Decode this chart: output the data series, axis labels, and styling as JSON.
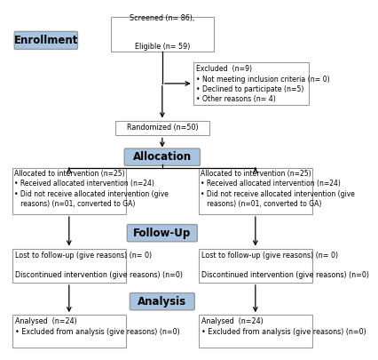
{
  "bg_color": "#ffffff",
  "box_border_color": "#999999",
  "label_box_color": "#a8c4e0",
  "label_text_color": "#000000",
  "box_text_color": "#000000",
  "enrollment_label": "Enrollment",
  "allocation_label": "Allocation",
  "followup_label": "Follow-Up",
  "analysis_label": "Analysis",
  "screened_text": "Screened (n= 86),\n\nEligible (n= 59)",
  "excluded_text": "Excluded  (n=9)\n• Not meeting inclusion criteria (n= 0)\n• Declined to participate (n=5)\n• Other reasons (n= 4)",
  "randomized_text": "Randomized (n=50)",
  "alloc_left_text": "Allocated to intervention (n=25)\n• Received allocated intervention (n=24)\n• Did not receive allocated intervention (give\n   reasons) (n=01, converted to GA)",
  "alloc_right_text": "Allocated to intervention (n=25)\n• Received allocated intervention (n=24)\n• Did not receive allocated intervention (give\n   reasons) (n=01, converted to GA)",
  "followup_left_text": "Lost to follow-up (give reasons) (n= 0)\n\nDiscontinued intervention (give reasons) (n=0)",
  "followup_right_text": "Lost to follow-up (give reasons) (n= 0)\n\nDiscontinued intervention (give reasons) (n=0)",
  "analysis_left_text": "Analysed  (n=24)\n• Excluded from analysis (give reasons) (n=0)",
  "analysis_right_text": "Analysed  (n=24)\n• Excluded from analysis (give reasons) (n=0)",
  "font_size_label": 8.5,
  "font_size_box": 5.8
}
